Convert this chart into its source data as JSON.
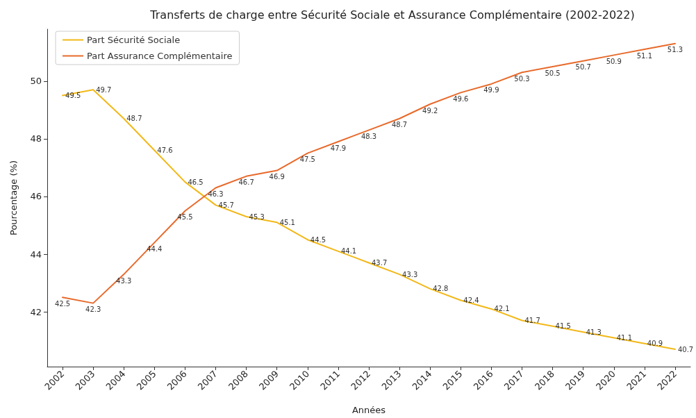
{
  "chart_data": {
    "type": "line",
    "title": "Transferts de charge entre Sécurité Sociale et Assurance Complémentaire (2002-2022)",
    "xlabel": "Années",
    "ylabel": "Pourcentage (%)",
    "categories": [
      "2002",
      "2003",
      "2004",
      "2005",
      "2006",
      "2007",
      "2008",
      "2009",
      "2010",
      "2011",
      "2012",
      "2013",
      "2014",
      "2015",
      "2016",
      "2017",
      "2018",
      "2019",
      "2020",
      "2021",
      "2022"
    ],
    "series": [
      {
        "name": "Part Sécurité Sociale",
        "color": "#f2b817",
        "values": [
          49.5,
          49.7,
          48.7,
          47.6,
          46.5,
          45.7,
          45.3,
          45.1,
          44.5,
          44.1,
          43.7,
          43.3,
          42.8,
          42.4,
          42.1,
          41.7,
          41.5,
          41.3,
          41.1,
          40.9,
          40.7
        ]
      },
      {
        "name": "Part Assurance Complémentaire",
        "color": "#e8692a",
        "values": [
          42.5,
          42.3,
          43.3,
          44.4,
          45.5,
          46.3,
          46.7,
          46.9,
          47.5,
          47.9,
          48.3,
          48.7,
          49.2,
          49.6,
          49.9,
          50.3,
          50.5,
          50.7,
          50.9,
          51.1,
          51.3
        ]
      }
    ],
    "ylim": [
      40.1,
      51.8
    ],
    "yticks": [
      42,
      44,
      46,
      48,
      50
    ],
    "grid": false,
    "legend": "top left",
    "data_labels": true,
    "marker": "none",
    "line_style": "solid"
  }
}
